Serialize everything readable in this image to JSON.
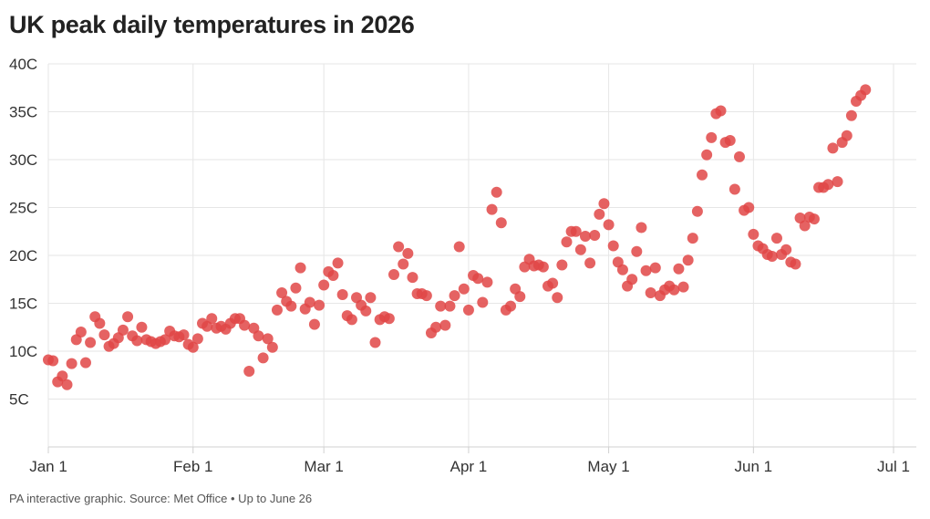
{
  "title": "UK peak daily temperatures in 2026",
  "footer": "PA interactive graphic. Source: Met Office • Up to June 26",
  "colors": {
    "dot": "#e04646",
    "grid": "#e6e6e6",
    "axis": "#d0d0d0",
    "text": "#333333"
  },
  "chart_data": {
    "type": "scatter",
    "title": "UK peak daily temperatures in 2026",
    "xlabel": "",
    "ylabel": "",
    "x_axis": "date (2026), one point per day",
    "x_start": "2026-01-01",
    "x_end": "2026-06-26",
    "xlim": [
      "2026-01-01",
      "2026-07-01"
    ],
    "ylim": [
      0,
      40
    ],
    "y_unit": "C",
    "grid": true,
    "legend": "none",
    "x_ticks": [
      {
        "date": "2026-01-01",
        "label": "Jan 1"
      },
      {
        "date": "2026-02-01",
        "label": "Feb 1"
      },
      {
        "date": "2026-03-01",
        "label": "Mar 1"
      },
      {
        "date": "2026-04-01",
        "label": "Apr 1"
      },
      {
        "date": "2026-05-01",
        "label": "May 1"
      },
      {
        "date": "2026-06-01",
        "label": "Jun 1"
      },
      {
        "date": "2026-07-01",
        "label": "Jul 1"
      }
    ],
    "y_ticks": [
      {
        "value": 5,
        "label": "5C"
      },
      {
        "value": 10,
        "label": "10C"
      },
      {
        "value": 15,
        "label": "15C"
      },
      {
        "value": 20,
        "label": "20C"
      },
      {
        "value": 25,
        "label": "25C"
      },
      {
        "value": 30,
        "label": "30C"
      },
      {
        "value": 35,
        "label": "35C"
      },
      {
        "value": 40,
        "label": "40C"
      }
    ],
    "series": [
      {
        "values": [
          9.1,
          9.0,
          6.8,
          7.4,
          6.5,
          8.7,
          11.2,
          12.0,
          8.8,
          10.9,
          13.6,
          12.9,
          11.7,
          10.5,
          10.8,
          11.4,
          12.2,
          13.6,
          11.6,
          11.1,
          12.5,
          11.2,
          11.0,
          10.8,
          11.0,
          11.2,
          12.1,
          11.6,
          11.5,
          11.7,
          10.7,
          10.4,
          11.3,
          12.9,
          12.6,
          13.4,
          12.4,
          12.6,
          12.3,
          12.9,
          13.4,
          13.4,
          12.7,
          7.9,
          12.4,
          11.6,
          9.3,
          11.3,
          10.4,
          14.3,
          16.1,
          15.2,
          14.7,
          16.6,
          18.7,
          14.4,
          15.1,
          12.8,
          14.8,
          16.9,
          18.3,
          17.9,
          19.2,
          15.9,
          13.7,
          13.3,
          15.6,
          14.8,
          14.2,
          15.6,
          10.9,
          13.3,
          13.6,
          13.4,
          18.0,
          20.9,
          19.1,
          20.2,
          17.7,
          16.0,
          16.0,
          15.8,
          11.9,
          12.5,
          14.7,
          12.7,
          14.7,
          15.8,
          20.9,
          16.5,
          14.3,
          17.9,
          17.6,
          15.1,
          17.2,
          24.8,
          26.6,
          23.4,
          14.3,
          14.7,
          16.5,
          15.7,
          18.8,
          19.6,
          18.9,
          19.0,
          18.8,
          16.8,
          17.1,
          15.6,
          19.0,
          21.4,
          22.5,
          22.5,
          20.6,
          22.0,
          19.2,
          22.1,
          24.3,
          25.4,
          23.2,
          21.0,
          19.3,
          18.5,
          16.8,
          17.5,
          20.4,
          22.9,
          18.4,
          16.1,
          18.7,
          15.8,
          16.4,
          16.8,
          16.4,
          18.6,
          16.7,
          19.5,
          21.8,
          24.6,
          28.4,
          30.5,
          32.3,
          34.8,
          35.1,
          31.8,
          32.0,
          26.9,
          30.3,
          24.7,
          25.0,
          22.2,
          21.0,
          20.7,
          20.1,
          19.9,
          21.8,
          20.1,
          20.6,
          19.3,
          19.1,
          23.9,
          23.1,
          24.0,
          23.8,
          27.1,
          27.1,
          27.4,
          31.2,
          27.7,
          31.8,
          32.5,
          34.6,
          36.1,
          36.7,
          37.3
        ]
      }
    ]
  }
}
